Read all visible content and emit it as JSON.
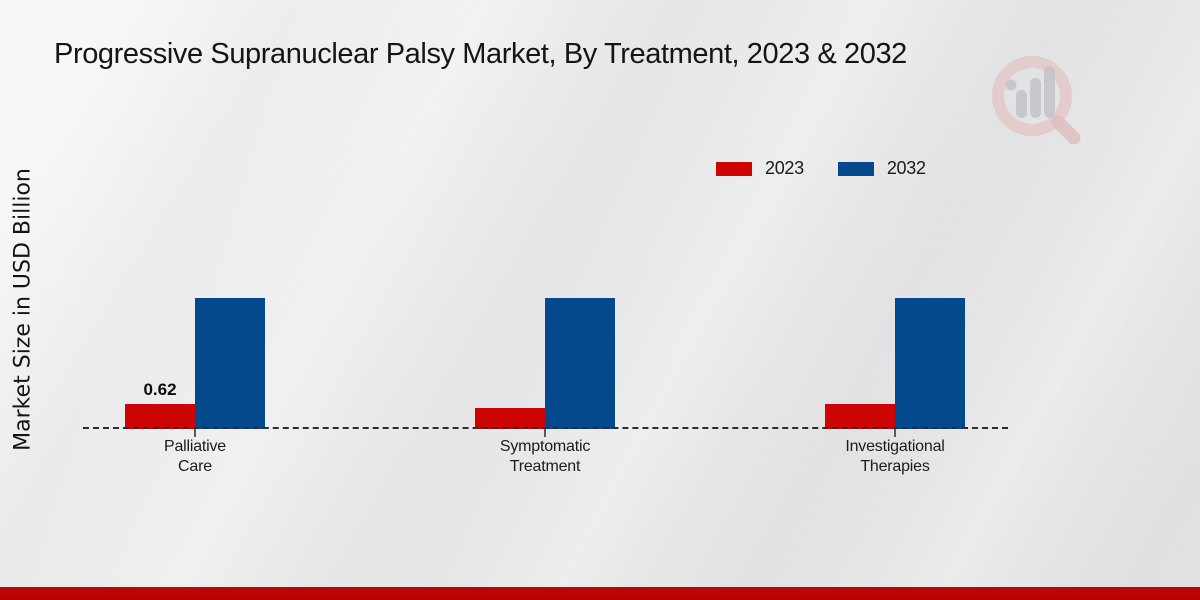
{
  "chart_data": {
    "type": "bar",
    "title": "Progressive Supranuclear Palsy Market, By Treatment, 2023 & 2032",
    "ylabel": "Market Size in USD Billion",
    "xlabel": "",
    "categories": [
      "Palliative Care",
      "Symptomatic Treatment",
      "Investigational Therapies"
    ],
    "category_lines": [
      [
        "Palliative",
        "Care"
      ],
      [
        "Symptomatic",
        "Treatment"
      ],
      [
        "Investigational",
        "Therapies"
      ]
    ],
    "series": [
      {
        "name": "2023",
        "color": "#cc0404",
        "values": [
          0.62,
          0.53,
          0.61
        ]
      },
      {
        "name": "2032",
        "color": "#04498c",
        "values": [
          3.25,
          3.25,
          3.25
        ]
      }
    ],
    "data_labels": [
      {
        "series": "2023",
        "category": "Palliative Care",
        "text": "0.62"
      }
    ],
    "legend_position": "top-right",
    "baseline_style": "dashed",
    "grid": false,
    "ylim": [
      0,
      3.4
    ],
    "colors": {
      "bar_2023": "#cc0404",
      "bar_2032": "#04498c",
      "bottom_strip": "#bb0303",
      "baseline": "#2d2d2d",
      "background": "#e9e9ea"
    }
  }
}
